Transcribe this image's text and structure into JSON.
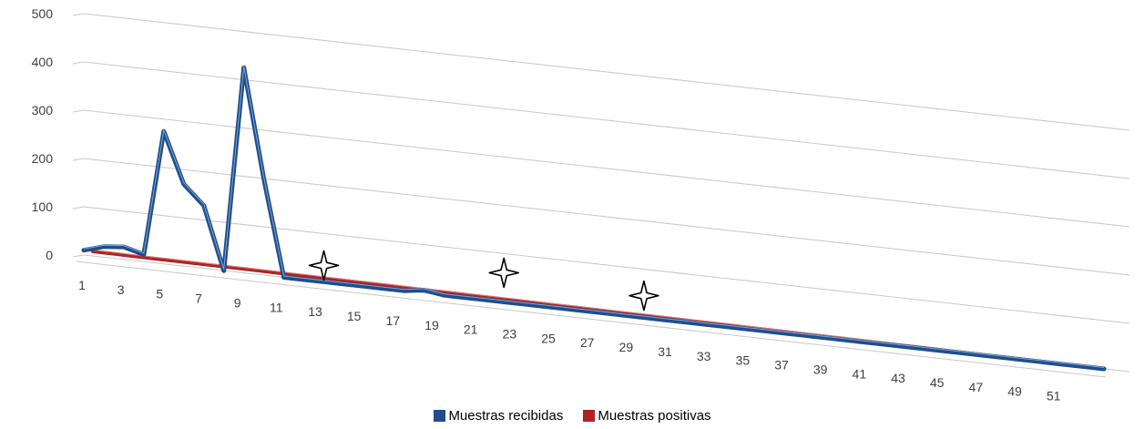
{
  "chart_data": {
    "type": "line",
    "x": [
      1,
      2,
      3,
      4,
      5,
      6,
      7,
      8,
      9,
      10,
      11,
      12,
      13,
      14,
      15,
      16,
      17,
      18,
      19,
      20,
      21,
      22,
      23,
      24,
      25,
      26,
      27,
      28,
      29,
      30,
      31,
      32,
      33,
      34,
      35,
      36,
      37,
      38,
      39,
      40,
      41,
      42,
      43,
      44,
      45,
      46,
      47,
      48,
      49,
      50,
      51,
      52
    ],
    "x_tick_labels": [
      "1",
      "3",
      "5",
      "7",
      "9",
      "11",
      "13",
      "15",
      "17",
      "19",
      "21",
      "23",
      "25",
      "27",
      "29",
      "31",
      "33",
      "35",
      "37",
      "39",
      "41",
      "43",
      "45",
      "47",
      "49",
      "51"
    ],
    "ylim": [
      0,
      500
    ],
    "y_ticks": [
      "0",
      "100",
      "200",
      "300",
      "400",
      "500"
    ],
    "grid": true,
    "legend_position": "bottom",
    "series": [
      {
        "name": "Muestras recibidas",
        "color": "#1f4e8c",
        "values": [
          10,
          22,
          26,
          15,
          275,
          170,
          130,
          0,
          425,
          200,
          0,
          0,
          0,
          0,
          0,
          0,
          0,
          6,
          0,
          0,
          0,
          0,
          0,
          0,
          0,
          0,
          0,
          0,
          0,
          0,
          0,
          0,
          0,
          0,
          0,
          0,
          0,
          0,
          0,
          0,
          0,
          0,
          0,
          0,
          0,
          0,
          0,
          0,
          0,
          0,
          0,
          0
        ]
      },
      {
        "name": "Muestras positivas",
        "color": "#b22222",
        "values": [
          0,
          0,
          0,
          0,
          0,
          0,
          0,
          0,
          0,
          0,
          0,
          0,
          0,
          0,
          0,
          0,
          0,
          0,
          0,
          0,
          0,
          0,
          0,
          0,
          0,
          0,
          0,
          0,
          0,
          0,
          0,
          0,
          0,
          0,
          0,
          0,
          0,
          0,
          0,
          0,
          0,
          0,
          0,
          0,
          0,
          0,
          0,
          0,
          0,
          0,
          0,
          0
        ]
      }
    ],
    "annotations": [
      {
        "type": "star-marker",
        "x": 13
      },
      {
        "type": "star-marker",
        "x": 22
      },
      {
        "type": "star-marker",
        "x": 29
      }
    ]
  }
}
